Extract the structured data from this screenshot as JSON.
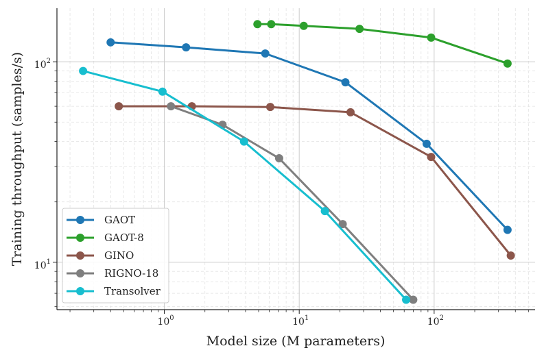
{
  "chart_data": {
    "type": "line",
    "xscale": "log",
    "yscale": "log",
    "xlabel": "Model size (M parameters)",
    "ylabel": "Training throughput (samples/s)",
    "xlim": [
      0.16,
      560
    ],
    "ylim": [
      5.8,
      185
    ],
    "xticks": [
      {
        "base": "10",
        "exp": "0",
        "value": 1
      },
      {
        "base": "10",
        "exp": "1",
        "value": 10
      },
      {
        "base": "10",
        "exp": "2",
        "value": 100
      }
    ],
    "yticks": [
      {
        "base": "10",
        "exp": "1",
        "value": 10
      },
      {
        "base": "10",
        "exp": "2",
        "value": 100
      }
    ],
    "legend_position": "lower-left",
    "series": [
      {
        "name": "GAOT",
        "color": "#1f77b4",
        "x": [
          0.4,
          1.45,
          5.6,
          22,
          88,
          350
        ],
        "y": [
          125,
          118,
          110,
          79,
          39,
          14.5
        ]
      },
      {
        "name": "GAOT-8",
        "color": "#2ca02c",
        "x": [
          4.9,
          6.2,
          10.8,
          28,
          95,
          350
        ],
        "y": [
          154,
          154,
          151,
          146,
          132,
          98
        ]
      },
      {
        "name": "GINO",
        "color": "#8c564b",
        "x": [
          0.46,
          1.6,
          6.1,
          24,
          95,
          370
        ],
        "y": [
          60,
          60,
          59.5,
          56,
          33.5,
          10.8
        ]
      },
      {
        "name": "RIGNO-18",
        "color": "#7f7f7f",
        "x": [
          1.12,
          2.7,
          7.1,
          21,
          70
        ],
        "y": [
          60,
          48.5,
          33,
          15.5,
          6.5
        ]
      },
      {
        "name": "Transolver",
        "color": "#17becf",
        "x": [
          0.25,
          0.97,
          3.9,
          15.5,
          62
        ],
        "y": [
          90,
          71,
          40,
          18,
          6.5
        ]
      }
    ]
  }
}
